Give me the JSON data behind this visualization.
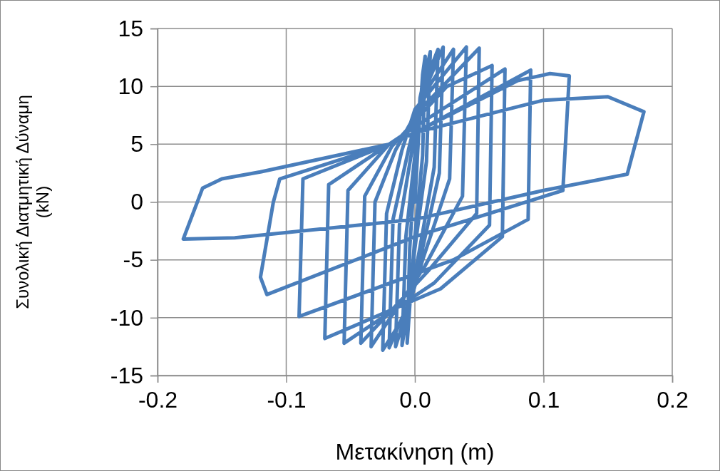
{
  "chart_data": {
    "type": "line",
    "xlabel": "Μετακίνηση (m)",
    "ylabel": "Συνολική Διατμητική Δύναμη (kN)",
    "xlim": [
      -0.2,
      0.2
    ],
    "xticks": [
      -0.2,
      -0.1,
      {
        "value": 0,
        "label": "0.0"
      },
      0.1,
      0.2
    ],
    "ylim": [
      -15,
      15
    ],
    "yticks": [
      -15,
      -10,
      -5,
      0,
      5,
      10,
      15
    ],
    "grid": true,
    "marker": "none",
    "line_style": "solid",
    "series": [
      {
        "color": "#4a7ebb",
        "x": [
          0,
          0.003,
          0.006,
          0.008,
          0.006,
          0,
          -0.004,
          -0.006,
          -0.004,
          0,
          0.004,
          0.012,
          0.009,
          0,
          -0.005,
          -0.01,
          -0.007,
          0,
          0.005,
          0.018,
          0.015,
          0.003,
          -0.005,
          -0.015,
          -0.012,
          -0.003,
          0.005,
          0.022,
          0.019,
          0.005,
          -0.006,
          -0.02,
          -0.017,
          -0.005,
          0.005,
          0.03,
          0.027,
          0.006,
          -0.006,
          -0.025,
          -0.022,
          -0.01,
          0,
          0.04,
          0.037,
          0.008,
          -0.034,
          -0.031,
          -0.015,
          0,
          0.05,
          0.048,
          0.01,
          -0.042,
          -0.039,
          -0.018,
          0,
          0.025,
          0.06,
          0.058,
          0.015,
          -0.055,
          -0.052,
          -0.02,
          0,
          0.07,
          0.068,
          0.02,
          -0.07,
          -0.067,
          -0.02,
          0,
          0.09,
          0.088,
          0.03,
          -0.09,
          -0.087,
          -0.02,
          0,
          0.08,
          0.105,
          0.12,
          0.115,
          0,
          -0.115,
          -0.12,
          -0.11,
          -0.105,
          -0.02,
          0,
          0.1,
          0.15,
          0.178,
          0.165,
          0.1,
          0,
          -0.14,
          -0.18,
          -0.165,
          -0.15,
          -0.12,
          -0.02
        ],
        "values": [
          0,
          6,
          11,
          12.6,
          4,
          -3,
          -9,
          -12.2,
          -4,
          3,
          9,
          13,
          3.5,
          -4,
          -9,
          -12.4,
          -3,
          4,
          9.5,
          13.2,
          3,
          -4.5,
          -9,
          -12.5,
          -2,
          4,
          9,
          13.4,
          2.5,
          -4.5,
          -9,
          -12.6,
          -1.5,
          4.5,
          9,
          13.2,
          2,
          -5,
          -9.5,
          -12.8,
          -1,
          4.5,
          8,
          13.4,
          0.5,
          -5.5,
          -12.5,
          0,
          4.5,
          7.5,
          13.3,
          -1,
          -6,
          -12.2,
          0.5,
          4.8,
          7,
          10,
          11.8,
          -2,
          -7,
          -12.2,
          1,
          5,
          6.5,
          11.5,
          -3,
          -7.5,
          -11.8,
          1.5,
          5,
          6,
          11.4,
          -1.5,
          -5,
          -9.9,
          2,
          5,
          6,
          10.5,
          11.1,
          10.9,
          1,
          -3,
          -8,
          -6.5,
          0,
          2,
          5,
          6,
          8.8,
          9.1,
          7.8,
          2.4,
          1,
          -1.5,
          -3.1,
          -3.2,
          1.2,
          2,
          2.6,
          5
        ]
      }
    ]
  }
}
